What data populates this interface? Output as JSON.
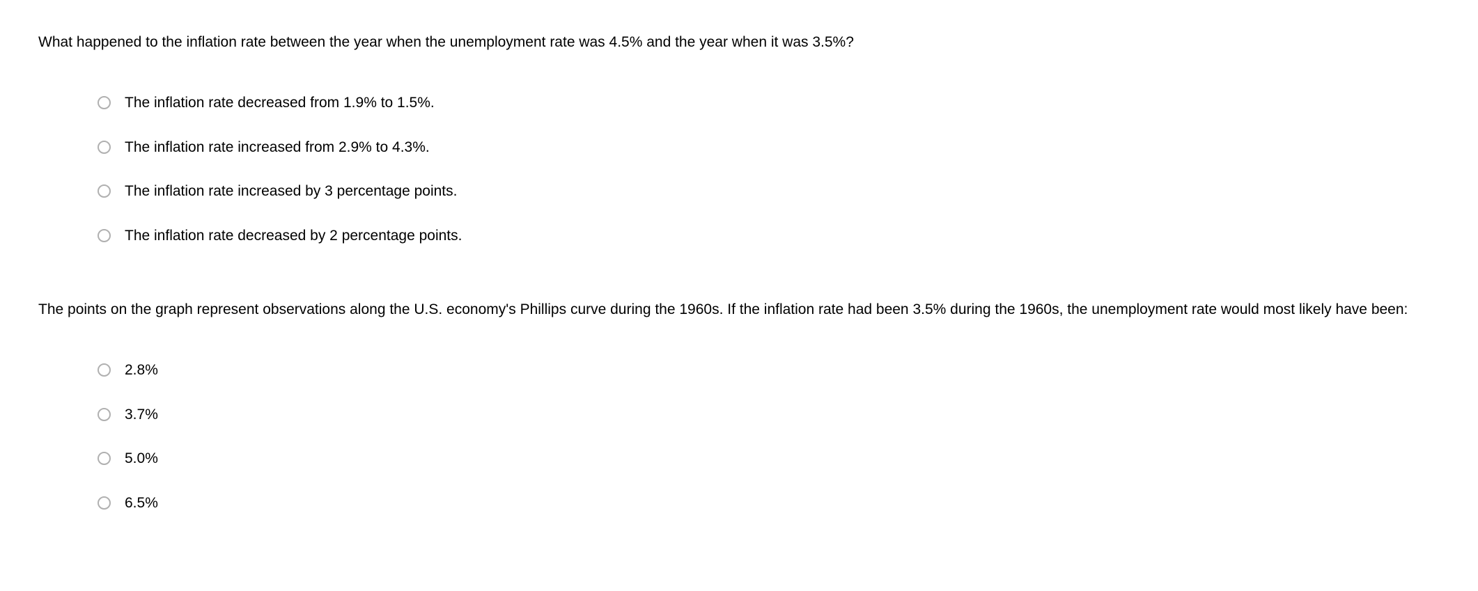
{
  "questions": [
    {
      "prompt": "What happened to the inflation rate between the year when the unemployment rate was 4.5% and the year when it was 3.5%?",
      "options": [
        "The inflation rate decreased from 1.9% to 1.5%.",
        "The inflation rate increased from 2.9% to 4.3%.",
        "The inflation rate increased by 3 percentage points.",
        "The inflation rate decreased by 2 percentage points."
      ]
    },
    {
      "prompt": "The points on the graph represent observations along the U.S. economy's Phillips curve during the 1960s. If the inflation rate had been 3.5% during the 1960s, the unemployment rate would most likely have been:",
      "options": [
        "2.8%",
        "3.7%",
        "5.0%",
        "6.5%"
      ]
    }
  ]
}
